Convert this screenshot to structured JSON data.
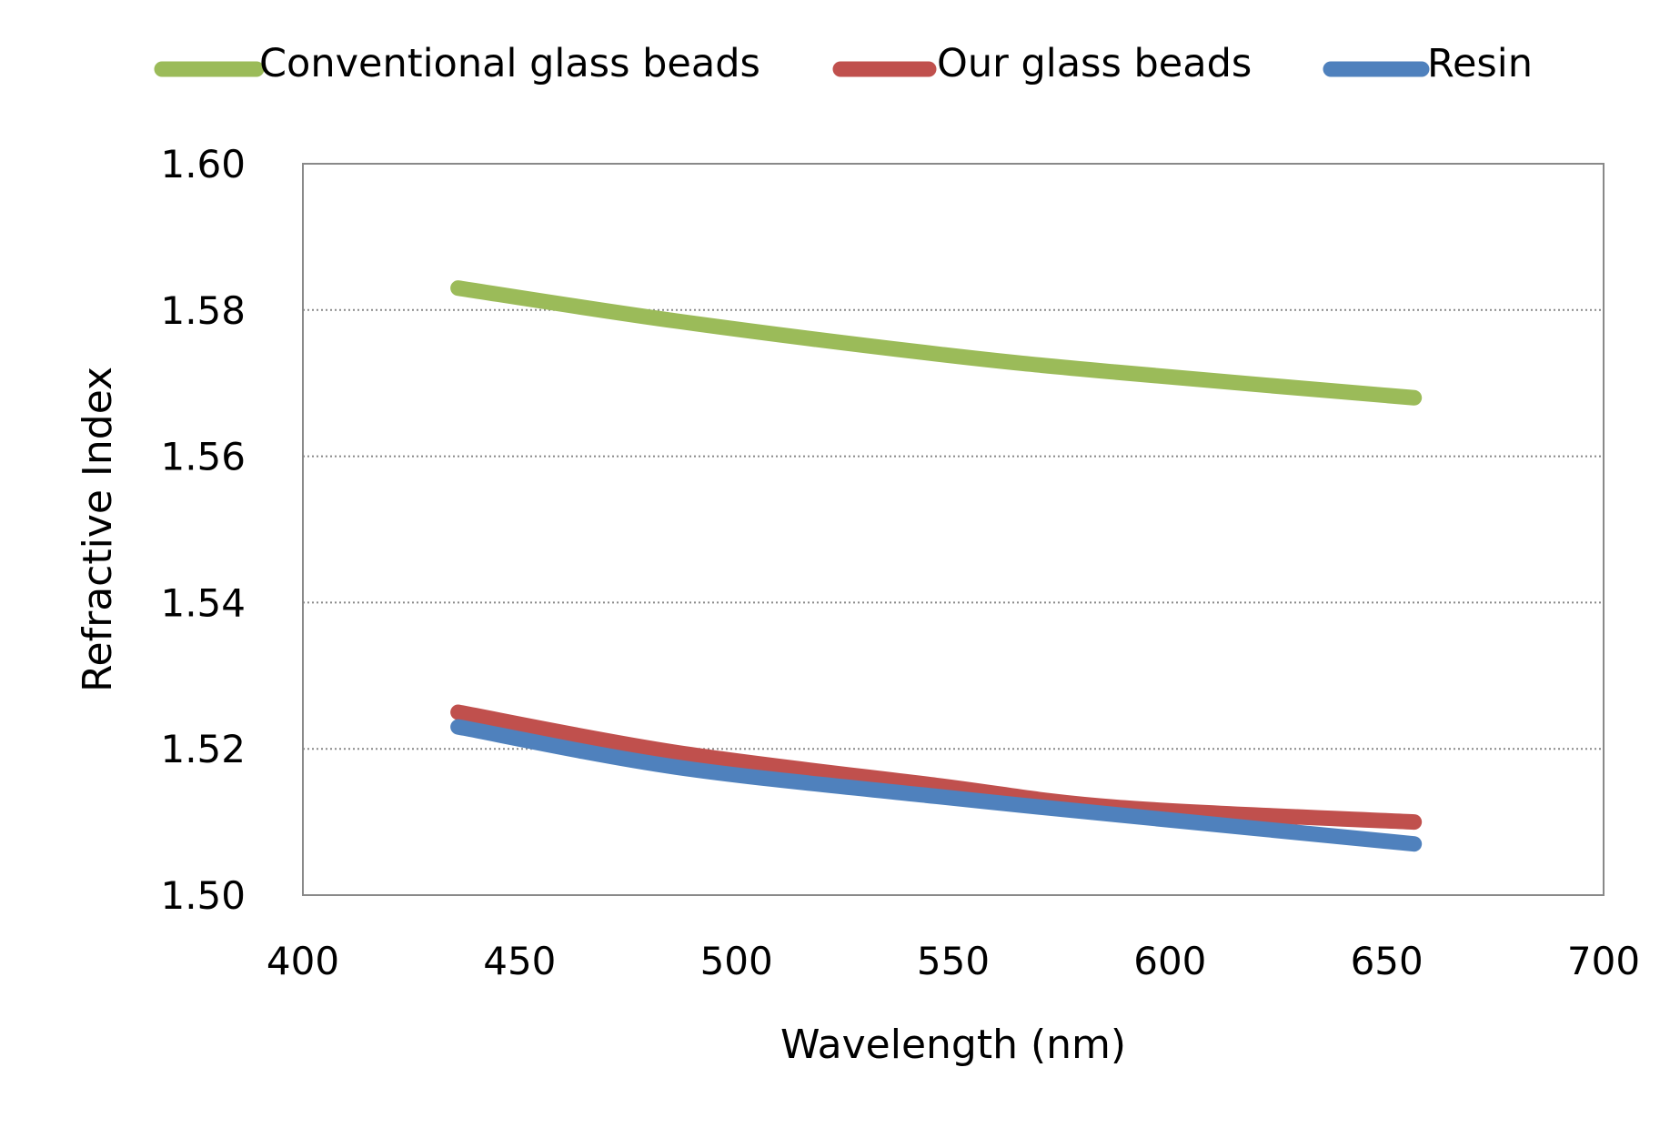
{
  "chart_data": {
    "type": "line",
    "title": "",
    "xlabel": "Wavelength (nm)",
    "ylabel": "Refractive Index",
    "xlim": [
      400,
      700
    ],
    "ylim": [
      1.5,
      1.6
    ],
    "xticks": [
      "400",
      "450",
      "500",
      "550",
      "600",
      "650",
      "700"
    ],
    "yticks": [
      "1.50",
      "1.52",
      "1.54",
      "1.56",
      "1.58",
      "1.60"
    ],
    "grid": "horizontal dotted",
    "legend_placement": "top",
    "series": [
      {
        "name": "Conventional glass beads",
        "color": "#9BBB59",
        "x": [
          435.8,
          486.1,
          546.1,
          587.6,
          656.3
        ],
        "y": [
          1.583,
          1.5785,
          1.574,
          1.5715,
          1.568
        ]
      },
      {
        "name": "Our glass beads",
        "color": "#C0504D",
        "x": [
          435.8,
          486.1,
          546.1,
          587.6,
          656.3
        ],
        "y": [
          1.525,
          1.5195,
          1.515,
          1.512,
          1.51
        ]
      },
      {
        "name": "Resin",
        "color": "#4F81BD",
        "x": [
          435.8,
          486.1,
          546.1,
          587.6,
          656.3
        ],
        "y": [
          1.523,
          1.5175,
          1.5135,
          1.511,
          1.507
        ]
      }
    ]
  }
}
